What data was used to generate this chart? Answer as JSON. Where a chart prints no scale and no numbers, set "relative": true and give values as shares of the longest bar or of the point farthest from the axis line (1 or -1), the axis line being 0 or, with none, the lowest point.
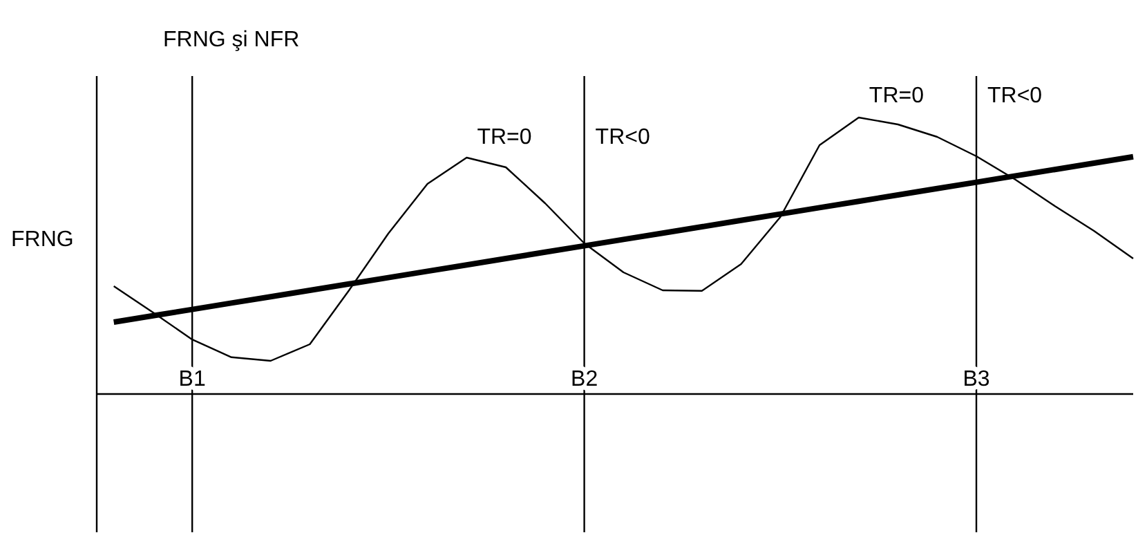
{
  "chart_data": {
    "type": "line",
    "title": "FRNG şi NFR",
    "ylabel": "FRNG",
    "relative": true,
    "categories": [
      null,
      null,
      "B1",
      null,
      null,
      null,
      null,
      null,
      null,
      null,
      null,
      null,
      "B2",
      null,
      null,
      null,
      null,
      null,
      null,
      null,
      null,
      null,
      "B3",
      null,
      null,
      null,
      null
    ],
    "series": [
      {
        "color": "#000000",
        "values": [
          0.26,
          0.283,
          0.306,
          0.329,
          0.352,
          0.375,
          0.398,
          0.421,
          0.444,
          0.467,
          0.49,
          0.513,
          0.536,
          0.559,
          0.582,
          0.605,
          0.628,
          0.651,
          0.674,
          0.697,
          0.72,
          0.743,
          0.766,
          0.789,
          0.812,
          0.835,
          0.858
        ]
      },
      {
        "color": "#000000",
        "values": [
          0.39,
          0.295,
          0.197,
          0.133,
          0.12,
          0.18,
          0.375,
          0.58,
          0.76,
          0.855,
          0.82,
          0.69,
          0.545,
          0.44,
          0.375,
          0.373,
          0.47,
          0.64,
          0.9,
          1,
          0.975,
          0.93,
          0.86,
          0.775,
          0.68,
          0.59,
          0.49
        ]
      }
    ],
    "ref_lines": [
      {
        "axis": "x",
        "value": "B1"
      },
      {
        "axis": "x",
        "value": "B2"
      },
      {
        "axis": "x",
        "value": "B3"
      }
    ],
    "annotations": [
      "TR=0",
      "TR<0",
      "TR=0",
      "TR<0"
    ]
  }
}
